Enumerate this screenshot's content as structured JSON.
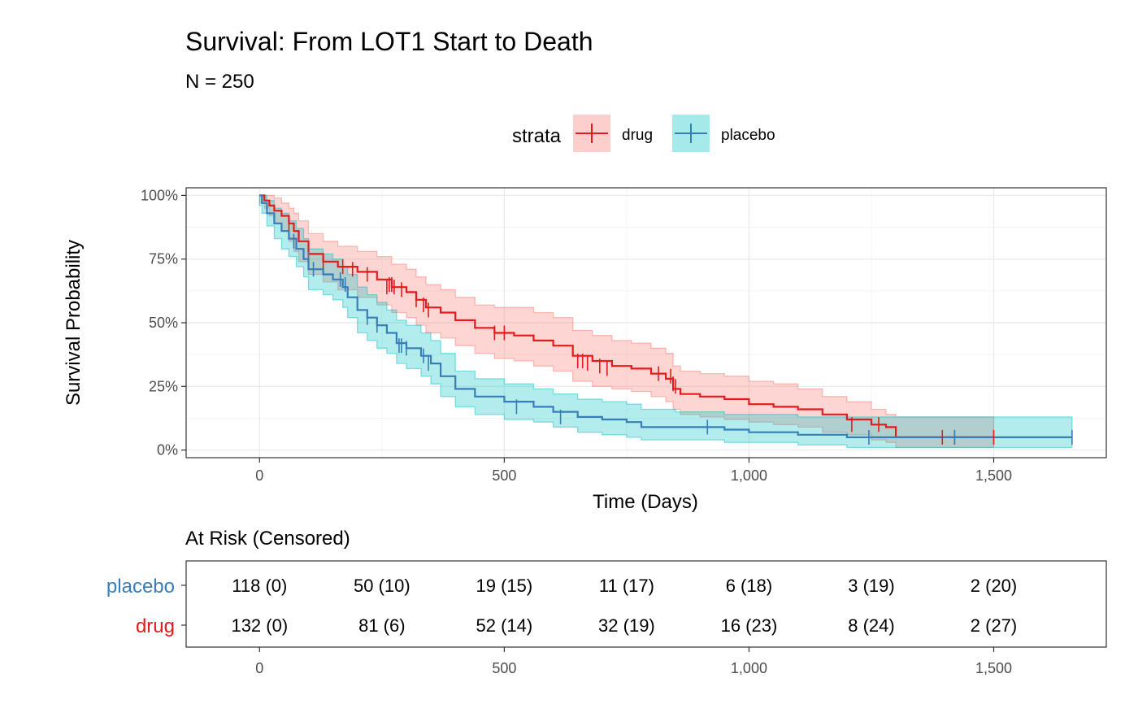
{
  "chart_data": {
    "type": "line",
    "subtype": "kaplan-meier",
    "title": "Survival: From LOT1 Start to Death",
    "subtitle": "N = 250",
    "xlabel": "Time (Days)",
    "ylabel": "Survival Probability",
    "xlim": [
      -150,
      1730
    ],
    "ylim": [
      -0.03,
      1.03
    ],
    "x_ticks": [
      0,
      500,
      1000,
      1500
    ],
    "x_tick_labels": [
      "0",
      "500",
      "1,000",
      "1,500"
    ],
    "y_ticks": [
      0,
      0.25,
      0.5,
      0.75,
      1.0
    ],
    "y_tick_labels": [
      "0%",
      "25%",
      "50%",
      "75%",
      "100%"
    ],
    "grid": true,
    "legend": {
      "title": "strata",
      "position": "top",
      "entries": [
        "drug",
        "placebo"
      ]
    },
    "series": [
      {
        "name": "drug",
        "color": "#e41a1c",
        "fill": "#f8766d",
        "x": [
          0,
          10,
          20,
          30,
          45,
          60,
          70,
          80,
          100,
          130,
          160,
          200,
          240,
          270,
          300,
          320,
          340,
          370,
          400,
          440,
          480,
          520,
          560,
          600,
          640,
          680,
          720,
          760,
          800,
          830,
          845,
          860,
          900,
          950,
          1000,
          1050,
          1100,
          1150,
          1200,
          1250,
          1280,
          1300,
          1350,
          1400,
          1500
        ],
        "y": [
          1.0,
          0.98,
          0.96,
          0.94,
          0.92,
          0.89,
          0.86,
          0.82,
          0.77,
          0.74,
          0.72,
          0.7,
          0.67,
          0.64,
          0.62,
          0.59,
          0.56,
          0.54,
          0.51,
          0.48,
          0.46,
          0.45,
          0.43,
          0.41,
          0.37,
          0.35,
          0.33,
          0.32,
          0.3,
          0.28,
          0.24,
          0.22,
          0.21,
          0.2,
          0.18,
          0.17,
          0.16,
          0.14,
          0.12,
          0.1,
          0.09,
          0.05,
          0.05,
          0.05,
          0.05
        ],
        "lower": [
          0.97,
          0.95,
          0.92,
          0.89,
          0.86,
          0.82,
          0.78,
          0.74,
          0.69,
          0.66,
          0.63,
          0.6,
          0.57,
          0.54,
          0.52,
          0.49,
          0.46,
          0.44,
          0.41,
          0.38,
          0.36,
          0.35,
          0.33,
          0.31,
          0.27,
          0.25,
          0.24,
          0.23,
          0.21,
          0.19,
          0.16,
          0.14,
          0.13,
          0.12,
          0.11,
          0.1,
          0.09,
          0.07,
          0.06,
          0.04,
          0.03,
          0.01,
          0.01,
          0.01,
          0.01
        ],
        "upper": [
          1.0,
          1.0,
          1.0,
          0.99,
          0.97,
          0.95,
          0.93,
          0.9,
          0.85,
          0.82,
          0.8,
          0.78,
          0.76,
          0.73,
          0.71,
          0.68,
          0.65,
          0.63,
          0.6,
          0.57,
          0.56,
          0.56,
          0.54,
          0.52,
          0.47,
          0.45,
          0.43,
          0.42,
          0.4,
          0.38,
          0.33,
          0.31,
          0.3,
          0.29,
          0.27,
          0.26,
          0.24,
          0.21,
          0.19,
          0.16,
          0.14,
          0.13,
          0.13,
          0.13,
          0.13
        ],
        "censored_x": [
          60,
          100,
          130,
          170,
          190,
          220,
          260,
          265,
          270,
          275,
          290,
          320,
          335,
          345,
          480,
          500,
          650,
          660,
          670,
          695,
          710,
          815,
          840,
          845,
          850,
          1210,
          1265,
          1395,
          1420,
          1500
        ],
        "censored_y": [
          0.89,
          0.77,
          0.74,
          0.72,
          0.71,
          0.69,
          0.64,
          0.65,
          0.65,
          0.64,
          0.63,
          0.59,
          0.57,
          0.55,
          0.46,
          0.46,
          0.35,
          0.35,
          0.34,
          0.33,
          0.32,
          0.3,
          0.29,
          0.26,
          0.25,
          0.1,
          0.1,
          0.05,
          0.05,
          0.05
        ]
      },
      {
        "name": "placebo",
        "color": "#377eb8",
        "fill": "#00bfc4",
        "x": [
          0,
          5,
          15,
          30,
          45,
          60,
          75,
          90,
          100,
          130,
          150,
          170,
          180,
          200,
          220,
          240,
          260,
          280,
          300,
          330,
          350,
          370,
          400,
          440,
          500,
          560,
          600,
          650,
          700,
          750,
          780,
          850,
          900,
          950,
          1000,
          1100,
          1200,
          1250,
          1300,
          1500,
          1660
        ],
        "y": [
          1.0,
          0.97,
          0.93,
          0.89,
          0.86,
          0.83,
          0.79,
          0.75,
          0.71,
          0.69,
          0.67,
          0.64,
          0.6,
          0.55,
          0.52,
          0.49,
          0.46,
          0.42,
          0.4,
          0.37,
          0.34,
          0.29,
          0.24,
          0.21,
          0.19,
          0.17,
          0.15,
          0.13,
          0.12,
          0.11,
          0.09,
          0.09,
          0.09,
          0.08,
          0.07,
          0.06,
          0.05,
          0.05,
          0.05,
          0.05,
          0.05
        ],
        "lower": [
          0.96,
          0.93,
          0.88,
          0.83,
          0.79,
          0.76,
          0.72,
          0.68,
          0.63,
          0.61,
          0.59,
          0.56,
          0.52,
          0.46,
          0.43,
          0.4,
          0.38,
          0.34,
          0.32,
          0.29,
          0.26,
          0.21,
          0.17,
          0.14,
          0.12,
          0.11,
          0.09,
          0.07,
          0.06,
          0.05,
          0.04,
          0.04,
          0.04,
          0.03,
          0.03,
          0.02,
          0.01,
          0.01,
          0.01,
          0.01,
          0.01
        ],
        "upper": [
          1.0,
          1.0,
          0.98,
          0.95,
          0.93,
          0.9,
          0.87,
          0.83,
          0.79,
          0.77,
          0.75,
          0.72,
          0.69,
          0.64,
          0.61,
          0.58,
          0.55,
          0.51,
          0.49,
          0.46,
          0.43,
          0.38,
          0.31,
          0.28,
          0.26,
          0.24,
          0.22,
          0.2,
          0.19,
          0.18,
          0.16,
          0.15,
          0.15,
          0.14,
          0.14,
          0.13,
          0.13,
          0.13,
          0.13,
          0.13,
          0.13
        ],
        "censored_x": [
          70,
          100,
          110,
          165,
          175,
          220,
          240,
          285,
          290,
          300,
          335,
          345,
          525,
          615,
          915,
          1245,
          1420,
          1660
        ],
        "censored_y": [
          0.82,
          0.75,
          0.71,
          0.67,
          0.65,
          0.52,
          0.49,
          0.41,
          0.41,
          0.4,
          0.37,
          0.34,
          0.17,
          0.13,
          0.09,
          0.05,
          0.05,
          0.05
        ]
      }
    ],
    "risk_table": {
      "title": "At Risk (Censored)",
      "times": [
        0,
        250,
        500,
        750,
        1000,
        1250,
        1500
      ],
      "x_ticks": [
        0,
        500,
        1000,
        1500
      ],
      "x_tick_labels": [
        "0",
        "500",
        "1,000",
        "1,500"
      ],
      "rows": [
        {
          "strata": "placebo",
          "color": "#377eb8",
          "cells": [
            "118 (0)",
            "50 (10)",
            "19 (15)",
            "11 (17)",
            "6 (18)",
            "3 (19)",
            "2 (20)"
          ]
        },
        {
          "strata": "drug",
          "color": "#e41a1c",
          "cells": [
            "132 (0)",
            "81 (6)",
            "52 (14)",
            "32 (19)",
            "16 (23)",
            "8 (24)",
            "2 (27)"
          ]
        }
      ]
    }
  }
}
